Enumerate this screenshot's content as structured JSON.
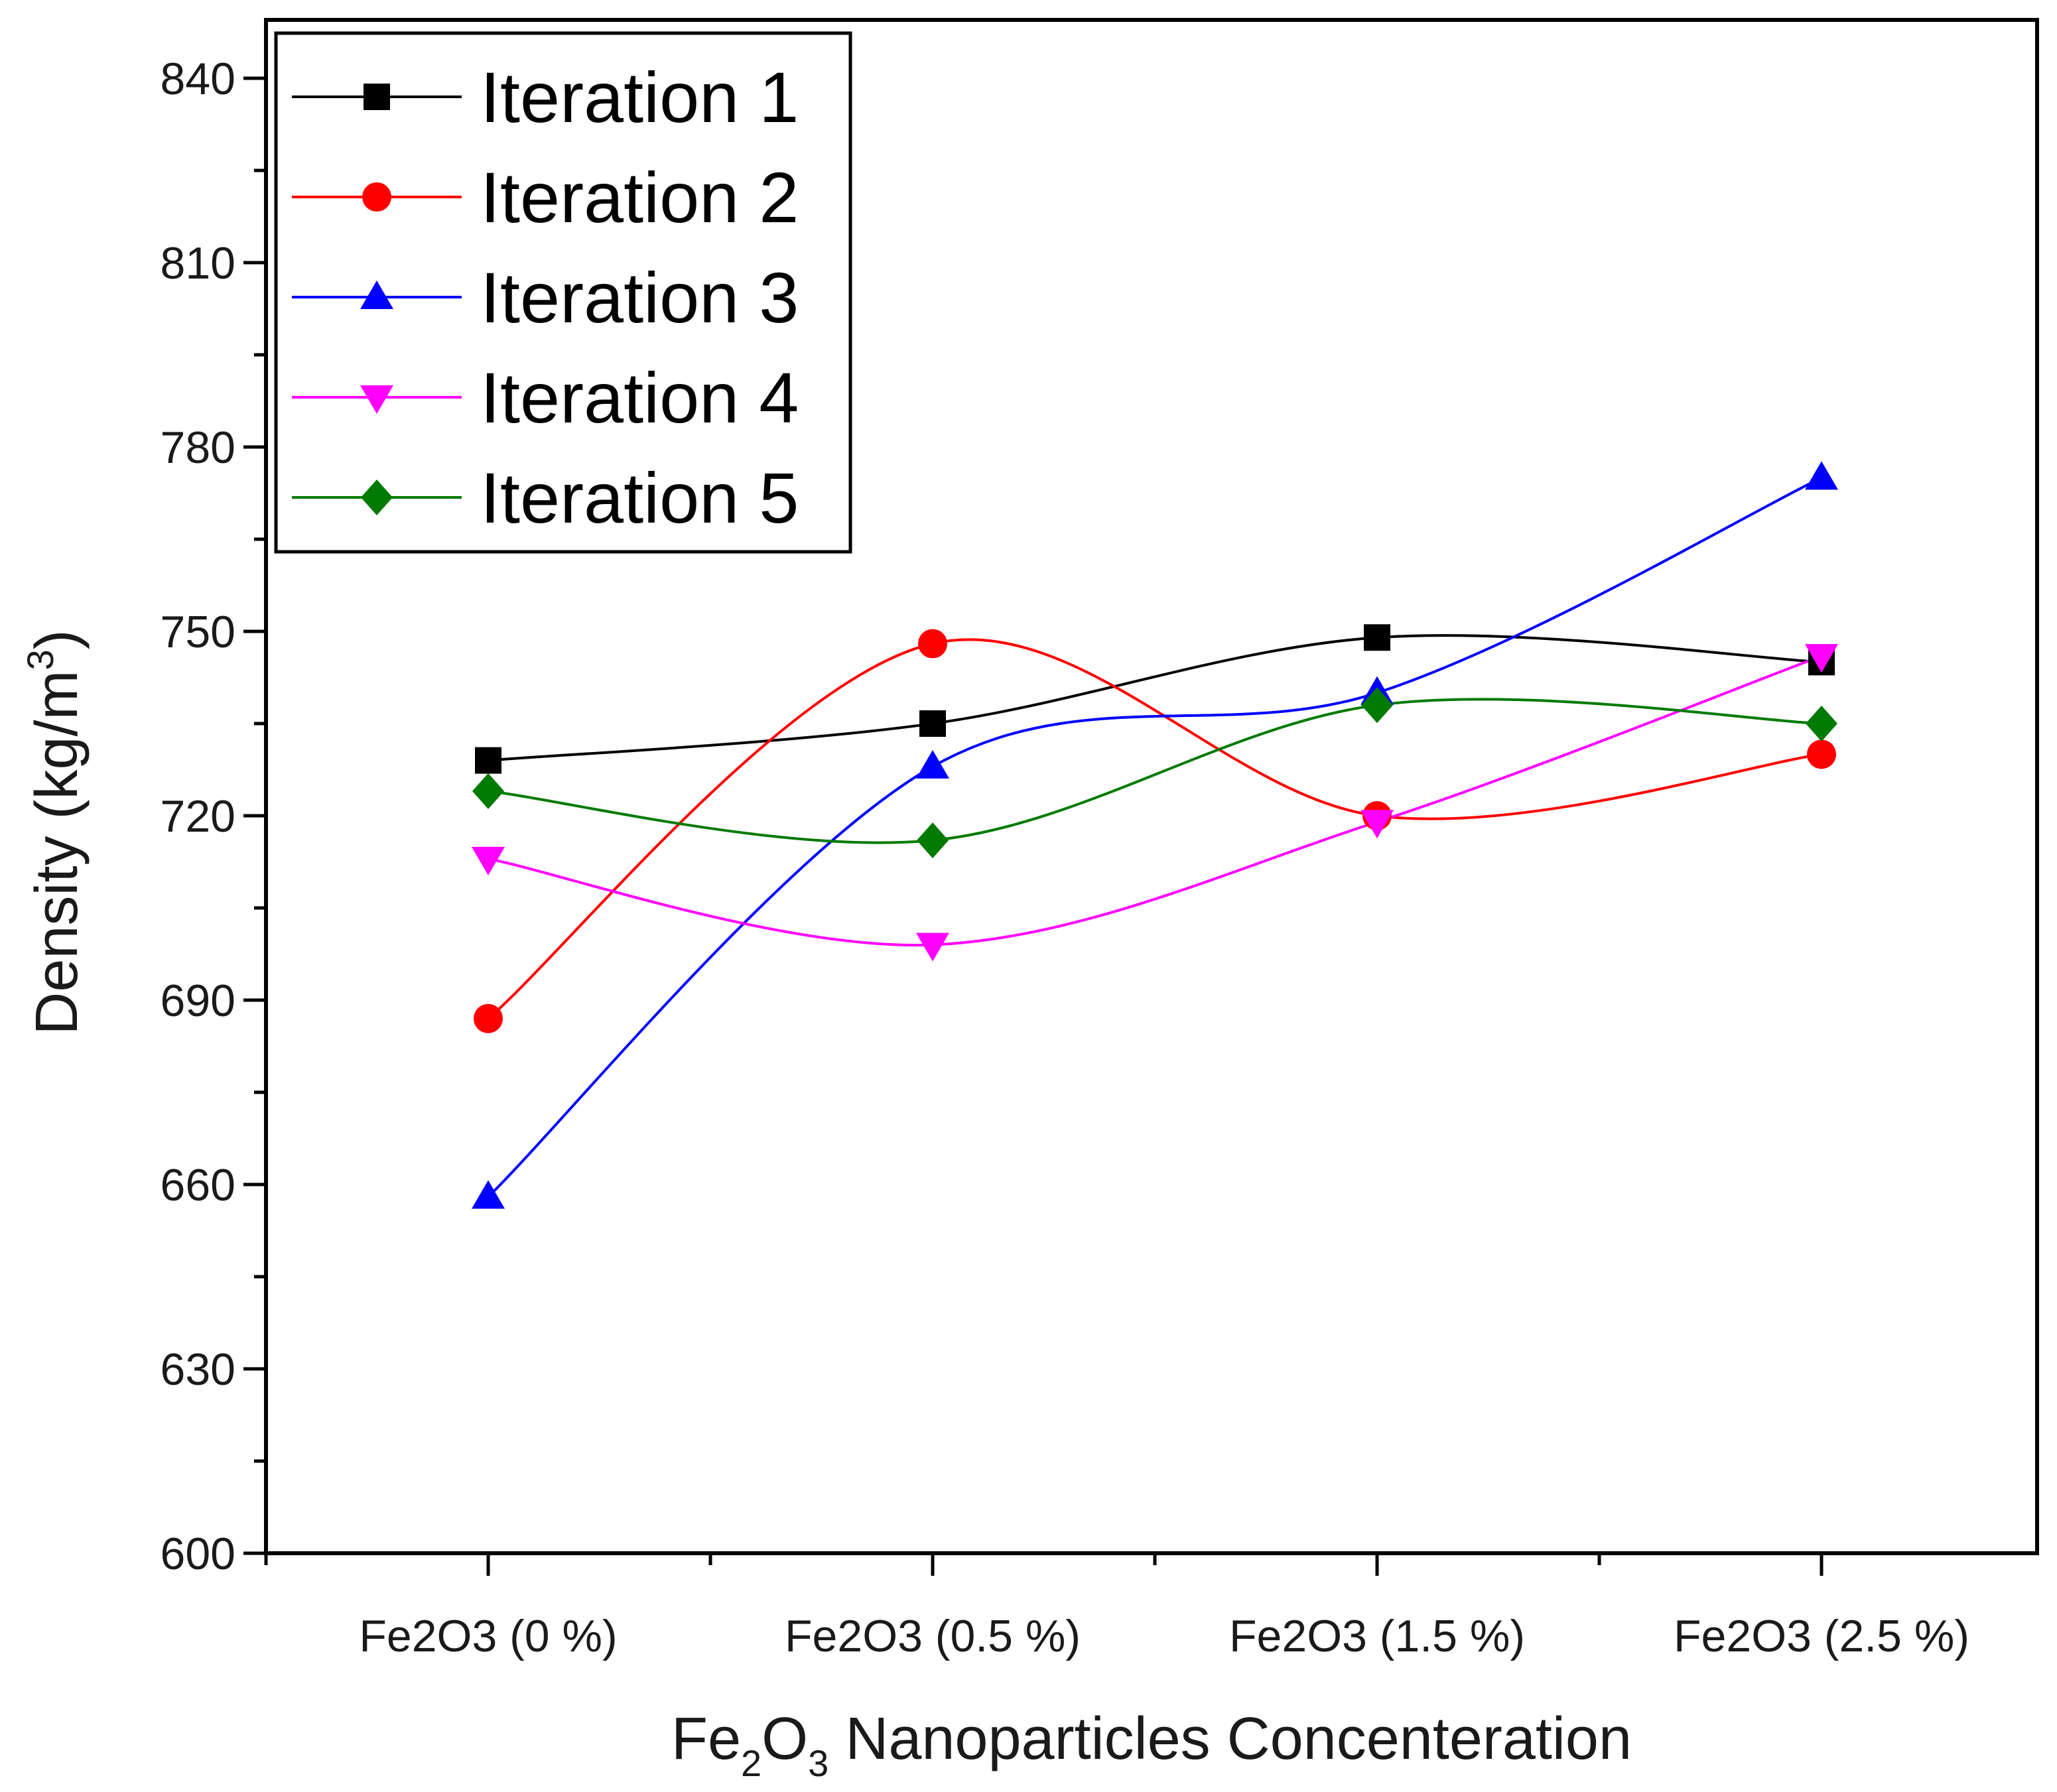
{
  "chart_data": {
    "type": "line",
    "categories": [
      "Fe2O3 (0 %)",
      "Fe2O3 (0.5 %)",
      "Fe2O3 (1.5 %)",
      "Fe2O3 (2.5 %)"
    ],
    "xlabel": "Fe2O3 Nanoparticles Concenteration",
    "xlabel_parts": {
      "a": "Fe",
      "sub1": "2",
      "b": "O",
      "sub2": "3",
      "c": " Nanoparticles Concenteration"
    },
    "ylabel": "Density (kg/m3)",
    "ylabel_parts": {
      "main": "Density (kg/m",
      "sup": "3",
      "close": ")"
    },
    "ylim": [
      600,
      840
    ],
    "yticks": [
      600,
      630,
      660,
      690,
      720,
      750,
      780,
      810,
      840
    ],
    "ytick_labels": [
      "600",
      "630",
      "660",
      "690",
      "720",
      "750",
      "780",
      "810",
      "840"
    ],
    "legend_position": "top-left",
    "series": [
      {
        "name": "Iteration 1",
        "color": "#000000",
        "marker": "square",
        "values": [
          729,
          735,
          749,
          745
        ]
      },
      {
        "name": "Iteration 2",
        "color": "#ff0000",
        "marker": "circle",
        "values": [
          687,
          748,
          720,
          730
        ]
      },
      {
        "name": "Iteration 3",
        "color": "#0000ff",
        "marker": "triangle-up",
        "values": [
          658,
          728,
          740,
          775
        ]
      },
      {
        "name": "Iteration 4",
        "color": "#ff00ff",
        "marker": "triangle-down",
        "values": [
          713,
          699,
          719,
          746
        ]
      },
      {
        "name": "Iteration 5",
        "color": "#007a00",
        "marker": "diamond",
        "values": [
          724,
          716,
          738,
          735
        ]
      }
    ]
  }
}
